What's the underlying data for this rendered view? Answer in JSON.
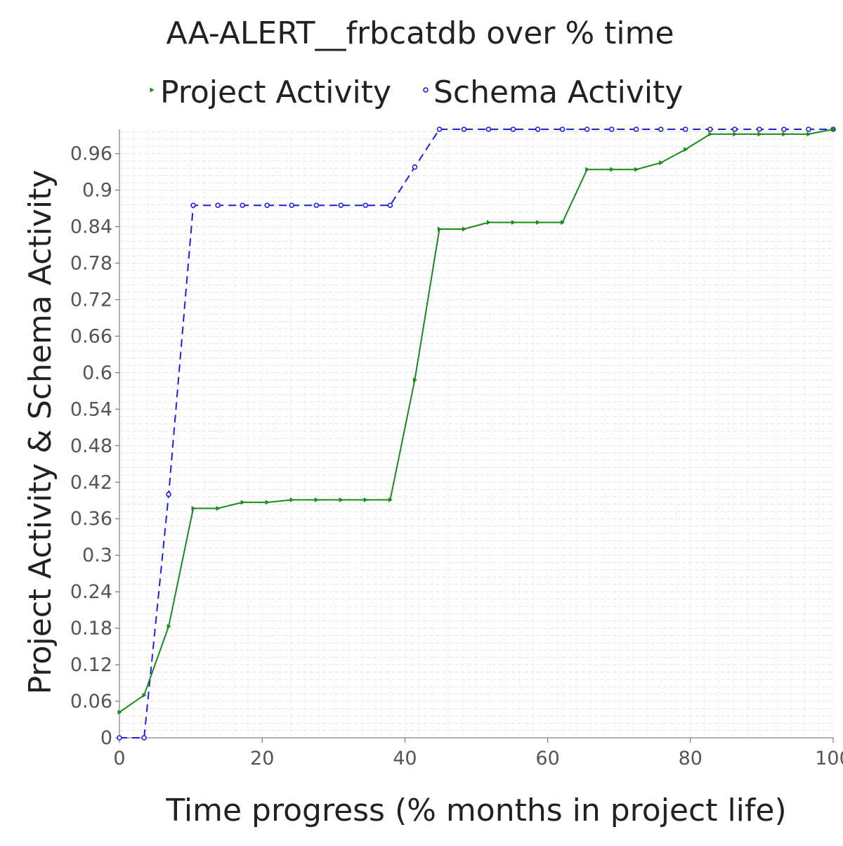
{
  "chart_data": {
    "type": "line",
    "title": "AA-ALERT__frbcatdb over % time",
    "xlabel": "Time progress (% months in project life)",
    "ylabel": "Project Activity & Schema Activity",
    "xlim": [
      0,
      100
    ],
    "ylim": [
      0,
      1.0
    ],
    "x_ticks": [
      0,
      20,
      40,
      60,
      80,
      100
    ],
    "x_tick_labels": [
      "0",
      "20",
      "40",
      "60",
      "80",
      "100"
    ],
    "y_ticks": [
      0,
      0.06,
      0.12,
      0.18,
      0.24,
      0.3,
      0.36,
      0.42,
      0.48,
      0.54,
      0.6,
      0.66,
      0.72,
      0.78,
      0.84,
      0.9,
      0.96
    ],
    "y_tick_labels": [
      "0",
      "0.06",
      "0.12",
      "0.18",
      "0.24",
      "0.3",
      "0.36",
      "0.42",
      "0.48",
      "0.54",
      "0.6",
      "0.66",
      "0.72",
      "0.78",
      "0.84",
      "0.9",
      "0.96"
    ],
    "grid": true,
    "legend_position": "top",
    "series": [
      {
        "name": "Project Activity",
        "color": "#1a8a1a",
        "line_style": "solid",
        "marker": "triangle-right",
        "x": [
          0,
          3.45,
          6.9,
          10.34,
          13.79,
          17.24,
          20.69,
          24.14,
          27.59,
          31.03,
          34.48,
          37.93,
          41.38,
          44.83,
          48.28,
          51.72,
          55.17,
          58.62,
          62.07,
          65.52,
          68.97,
          72.41,
          75.86,
          79.31,
          82.76,
          86.21,
          89.66,
          93.1,
          96.55,
          100
        ],
        "y": [
          0.042,
          0.07,
          0.183,
          0.377,
          0.377,
          0.387,
          0.387,
          0.391,
          0.391,
          0.391,
          0.391,
          0.391,
          0.588,
          0.836,
          0.836,
          0.847,
          0.847,
          0.847,
          0.847,
          0.934,
          0.934,
          0.934,
          0.945,
          0.967,
          0.992,
          0.992,
          0.992,
          0.992,
          0.992,
          1.0
        ]
      },
      {
        "name": "Schema Activity",
        "color": "#1f1fe0",
        "line_style": "dashed",
        "marker": "circle",
        "x": [
          0,
          3.45,
          6.9,
          10.34,
          13.79,
          17.24,
          20.69,
          24.14,
          27.59,
          31.03,
          34.48,
          37.93,
          41.38,
          44.83,
          48.28,
          51.72,
          55.17,
          58.62,
          62.07,
          65.52,
          68.97,
          72.41,
          75.86,
          79.31,
          82.76,
          86.21,
          89.66,
          93.1,
          96.55,
          100
        ],
        "y": [
          0,
          0,
          0.4,
          0.875,
          0.875,
          0.875,
          0.875,
          0.875,
          0.875,
          0.875,
          0.875,
          0.875,
          0.938,
          1.0,
          1.0,
          1.0,
          1.0,
          1.0,
          1.0,
          1.0,
          1.0,
          1.0,
          1.0,
          1.0,
          1.0,
          1.0,
          1.0,
          1.0,
          1.0,
          1.0
        ]
      }
    ]
  }
}
